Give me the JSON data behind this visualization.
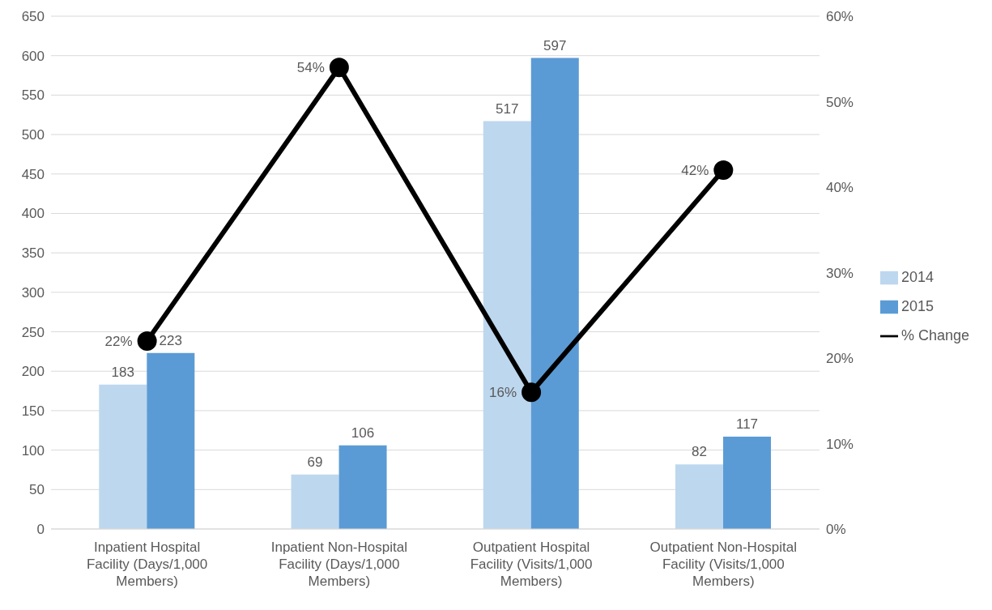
{
  "chart_data": {
    "type": "bar",
    "categories": [
      "Inpatient Hospital Facility (Days/1,000 Members)",
      "Inpatient Non-Hospital Facility (Days/1,000 Members)",
      "Outpatient Hospital Facility (Visits/1,000 Members)",
      "Outpatient Non-Hospital Facility (Visits/1,000 Members)"
    ],
    "series": [
      {
        "name": "2014",
        "color": "#bdd7ee",
        "values": [
          183,
          69,
          517,
          82
        ],
        "value_labels": [
          "183",
          "69",
          "517",
          "82"
        ]
      },
      {
        "name": "2015",
        "color": "#5b9bd5",
        "values": [
          223,
          106,
          597,
          117
        ],
        "value_labels": [
          "223",
          "106",
          "597",
          "117"
        ]
      },
      {
        "name": "% Change",
        "type": "line",
        "axis": "y2",
        "color": "#000000",
        "values": [
          22,
          54,
          16,
          42
        ],
        "value_labels": [
          "22%",
          "54%",
          "16%",
          "42%"
        ]
      }
    ],
    "ylim": [
      0,
      650
    ],
    "yticks": [
      0,
      50,
      100,
      150,
      200,
      250,
      300,
      350,
      400,
      450,
      500,
      550,
      600,
      650
    ],
    "y2lim": [
      0,
      60
    ],
    "y2ticks": [
      {
        "value": 0,
        "label": "0%"
      },
      {
        "value": 10,
        "label": "10%"
      },
      {
        "value": 20,
        "label": "20%"
      },
      {
        "value": 30,
        "label": "30%"
      },
      {
        "value": 40,
        "label": "40%"
      },
      {
        "value": 50,
        "label": "50%"
      },
      {
        "value": 60,
        "label": "60%"
      }
    ],
    "grid": "y",
    "legend": "right",
    "marker": "circle",
    "line_style": "solid"
  }
}
